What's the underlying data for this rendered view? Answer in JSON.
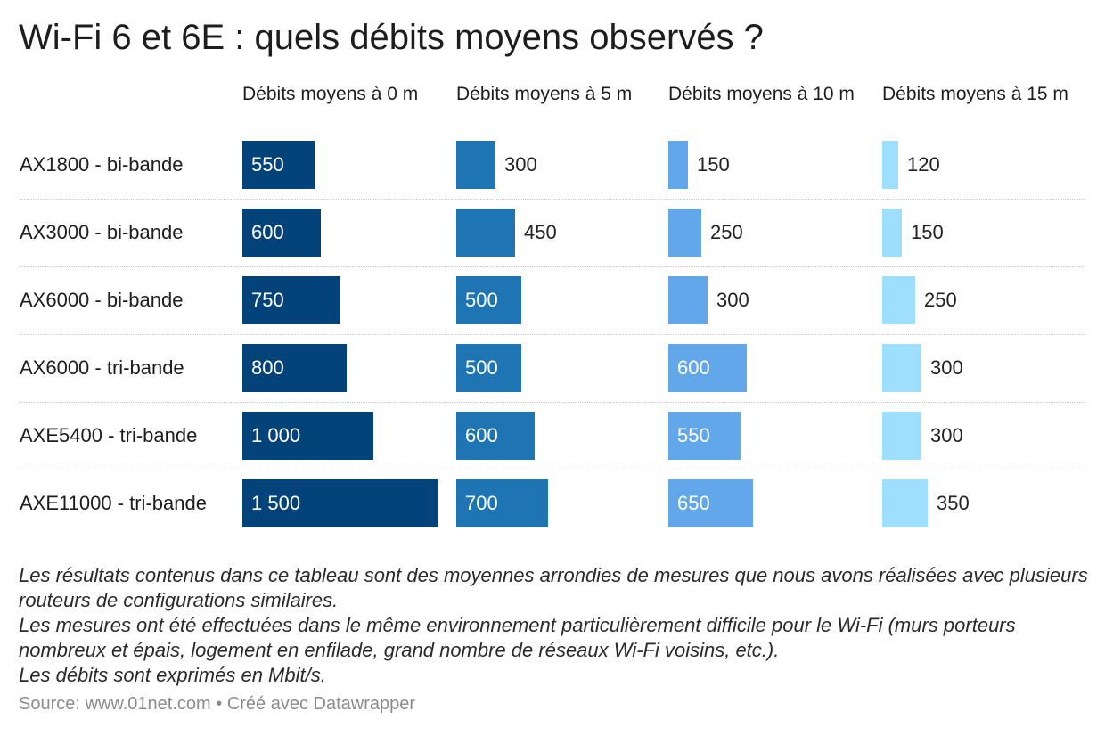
{
  "title": "Wi-Fi 6 et 6E : quels débits moyens observés ?",
  "notes": [
    "Les résultats contenus dans ce tableau sont des moyennes arrondies de mesures que nous avons réalisées avec plusieurs routeurs de configurations similaires.",
    "Les mesures ont été effectuées dans le même environnement particulièrement difficile pour le Wi-Fi (murs porteurs nombreux et épais, logement en enfilade, grand nombre de réseaux Wi-Fi voisins, etc.).",
    "Les débits sont exprimés en Mbit/s."
  ],
  "footer": {
    "source_label": "Source:",
    "source": "www.01net.com",
    "separator": "•",
    "credit": "Créé avec Datawrapper"
  },
  "chart_data": {
    "type": "bar",
    "orientation": "horizontal",
    "layout": "split-bars",
    "categories": [
      "AX1800 - bi-bande",
      "AX3000 - bi-bande",
      "AX6000 - bi-bande",
      "AX6000 - tri-bande",
      "AXE5400 - tri-bande",
      "AXE11000 - tri-bande"
    ],
    "series": [
      {
        "name": "Débits moyens à 0 m",
        "color": "#03437a",
        "text_color": "#ffffff",
        "values": [
          550,
          600,
          750,
          800,
          1000,
          1500
        ],
        "labels": [
          "550",
          "600",
          "750",
          "800",
          "1 000",
          "1 500"
        ]
      },
      {
        "name": "Débits moyens à 5 m",
        "color": "#1f74b4",
        "text_color": "#ffffff",
        "values": [
          300,
          450,
          500,
          500,
          600,
          700
        ],
        "labels": [
          "300",
          "450",
          "500",
          "500",
          "600",
          "700"
        ]
      },
      {
        "name": "Débits moyens à 10 m",
        "color": "#61a7ea",
        "text_color": "#ffffff",
        "values": [
          150,
          250,
          300,
          600,
          550,
          650
        ],
        "labels": [
          "150",
          "250",
          "300",
          "600",
          "550",
          "650"
        ]
      },
      {
        "name": "Débits moyens à 15 m",
        "color": "#9edfff",
        "text_color": "#222222",
        "values": [
          120,
          150,
          250,
          300,
          300,
          350
        ],
        "labels": [
          "120",
          "150",
          "250",
          "300",
          "300",
          "350"
        ]
      }
    ]
  }
}
